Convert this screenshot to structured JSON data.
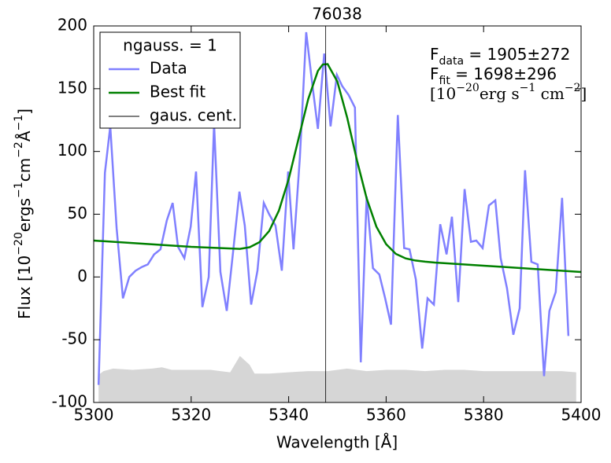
{
  "chart_data": {
    "type": "line",
    "title": "76038",
    "xlabel": "Wavelength [Å]",
    "ylabel": [
      "Flux [10",
      "−20",
      "ergs",
      "−1",
      "cm",
      "−2",
      "Å",
      "−1",
      "]"
    ],
    "xlim": [
      5300,
      5400
    ],
    "xticks": [
      5300,
      5320,
      5340,
      5360,
      5380,
      5400
    ],
    "ylim": [
      -100,
      200
    ],
    "yticks": [
      -100,
      -50,
      0,
      50,
      100,
      150,
      200
    ],
    "legend": {
      "title": "ngauss. = 1",
      "position": "upper left"
    },
    "series": [
      {
        "name": "Data",
        "color": "#8080ff",
        "x": [
          5301,
          5302.3,
          5303.4,
          5304.7,
          5306,
          5307.3,
          5308.6,
          5309.9,
          5311.1,
          5312.4,
          5313.7,
          5315,
          5316.2,
          5317.3,
          5318.6,
          5319.9,
          5321,
          5322.3,
          5323.6,
          5324.7,
          5326,
          5327.3,
          5328.6,
          5329.9,
          5331,
          5332.3,
          5333.6,
          5334.9,
          5336,
          5337.3,
          5338.6,
          5339.9,
          5341,
          5342.3,
          5343.6,
          5344.9,
          5346,
          5347.3,
          5348.6,
          5349.9,
          5351,
          5352.3,
          5353.6,
          5354.8,
          5356,
          5357.3,
          5358.6,
          5359.8,
          5361,
          5362.4,
          5363.7,
          5364.8,
          5366.1,
          5367.4,
          5368.5,
          5369.8,
          5371.1,
          5372.4,
          5373.5,
          5374.8,
          5376.1,
          5377.4,
          5378.5,
          5379.8,
          5381.1,
          5382.4,
          5383.5,
          5384.8,
          5386.1,
          5387.4,
          5388.5,
          5389.8,
          5391.1,
          5392.4,
          5393.5,
          5394.8,
          5396.1,
          5397.4
        ],
        "values": [
          -86,
          83,
          120,
          39,
          -17,
          0,
          5,
          8,
          10,
          18,
          22,
          45,
          59,
          24,
          15,
          40,
          84,
          -24,
          0,
          122,
          4,
          -27,
          20,
          68,
          41,
          -22,
          5,
          59,
          50,
          41,
          5,
          84,
          22,
          95,
          195,
          152,
          118,
          178,
          120,
          161,
          152,
          145,
          135,
          -68,
          64,
          7,
          2,
          -17,
          -38,
          129,
          23,
          22,
          -2,
          -57,
          -17,
          -22,
          42,
          18,
          48,
          -20,
          70,
          28,
          29,
          23,
          57,
          61,
          15,
          -9,
          -46,
          -25,
          85,
          12,
          10,
          -79,
          -27,
          -12,
          63,
          -47
        ]
      },
      {
        "name": "Best fit",
        "color": "#008000",
        "x": [
          5300,
          5310,
          5320,
          5330,
          5332,
          5334,
          5336,
          5338,
          5340,
          5342,
          5344,
          5346,
          5347,
          5348,
          5350,
          5352,
          5354,
          5356,
          5358,
          5360,
          5362,
          5364,
          5366,
          5368,
          5370,
          5380,
          5390,
          5400
        ],
        "values": [
          29,
          26.5,
          24,
          22.4,
          23.7,
          27.7,
          36.6,
          52.9,
          77.9,
          109.7,
          141.5,
          164.2,
          169.3,
          169.6,
          155.6,
          127.1,
          93.2,
          62.7,
          40.1,
          26.1,
          18.4,
          14.8,
          13.1,
          12.2,
          11.5,
          9,
          6.5,
          4
        ]
      }
    ],
    "center": {
      "name": "gaus. cent.",
      "color": "#000000",
      "x": 5347.6
    },
    "error_area": {
      "color": "#d6d6d6",
      "x": [
        5301,
        5302,
        5304,
        5308,
        5312,
        5314,
        5316,
        5320,
        5324,
        5326,
        5328,
        5330,
        5332,
        5333,
        5336,
        5340,
        5344,
        5348,
        5352,
        5356,
        5360,
        5364,
        5368,
        5372,
        5376,
        5380,
        5384,
        5388,
        5392,
        5396,
        5399
      ],
      "values": [
        -78,
        -75,
        -73,
        -74,
        -73,
        -72,
        -74,
        -74,
        -74,
        -75,
        -76,
        -63,
        -70,
        -77,
        -77,
        -76,
        -75,
        -75,
        -73,
        -75,
        -74,
        -74,
        -75,
        -74,
        -74,
        -75,
        -75,
        -75,
        -75,
        -75,
        -76
      ]
    },
    "annotations": [
      [
        "F",
        "data",
        " = 1905±272"
      ],
      [
        "F",
        "fit",
        "   = 1698±296"
      ],
      [
        "[10",
        "−20",
        "erg s",
        "−1",
        " cm",
        "−2",
        "]"
      ]
    ]
  }
}
